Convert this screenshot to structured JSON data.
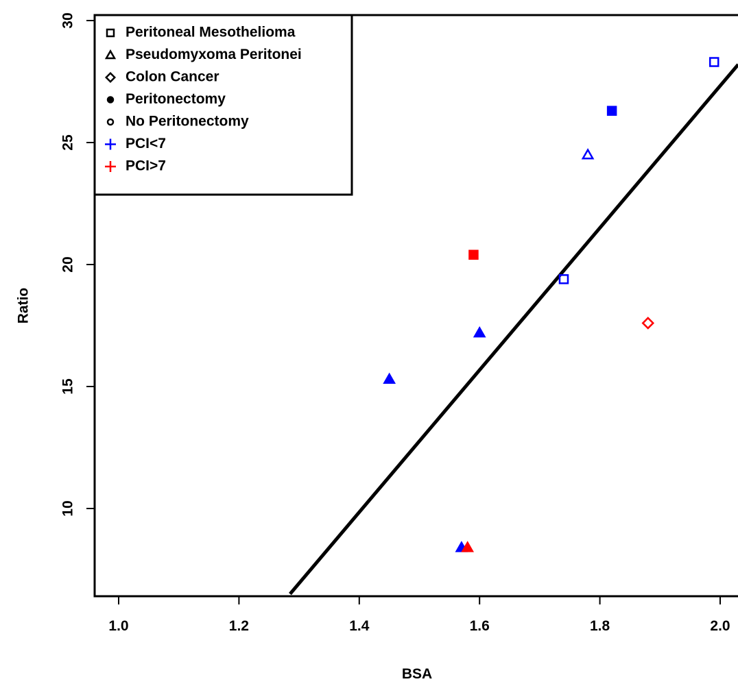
{
  "chart_data": {
    "type": "scatter",
    "title": "",
    "xlabel": "BSA",
    "ylabel": "Ratio",
    "xlim": [
      0.955,
      2.03
    ],
    "ylim": [
      6.5,
      30.0
    ],
    "xticks": [
      1.0,
      1.2,
      1.4,
      1.6,
      1.8,
      2.0
    ],
    "xtick_labels": [
      "1.0",
      "1.2",
      "1.4",
      "1.6",
      "1.8",
      "2.0"
    ],
    "yticks": [
      10,
      15,
      20,
      25,
      30
    ],
    "ytick_labels": [
      "10",
      "15",
      "20",
      "25",
      "30"
    ],
    "grid": false,
    "legend_position": "top-left",
    "legend": [
      {
        "label": "Peritoneal Mesothelioma",
        "symbol": "square-open",
        "color": "#000000"
      },
      {
        "label": "Pseudomyxoma Peritonei",
        "symbol": "triangle-open",
        "color": "#000000"
      },
      {
        "label": "Colon Cancer",
        "symbol": "diamond-open",
        "color": "#000000"
      },
      {
        "label": "Peritonectomy",
        "symbol": "circle-filled",
        "color": "#000000"
      },
      {
        "label": "No Peritonectomy",
        "symbol": "circle-open",
        "color": "#000000"
      },
      {
        "label": "PCI<7",
        "symbol": "plus",
        "color": "#0000ff"
      },
      {
        "label": "PCI>7",
        "symbol": "plus",
        "color": "#ff0000"
      }
    ],
    "points": [
      {
        "x": 1.99,
        "y": 28.3,
        "shape": "square",
        "filled": false,
        "color": "#0000ff"
      },
      {
        "x": 1.82,
        "y": 26.3,
        "shape": "square",
        "filled": true,
        "color": "#0000ff"
      },
      {
        "x": 1.78,
        "y": 24.5,
        "shape": "triangle",
        "filled": false,
        "color": "#0000ff"
      },
      {
        "x": 1.59,
        "y": 20.4,
        "shape": "square",
        "filled": true,
        "color": "#ff0000"
      },
      {
        "x": 1.74,
        "y": 19.4,
        "shape": "square",
        "filled": false,
        "color": "#0000ff"
      },
      {
        "x": 1.88,
        "y": 17.6,
        "shape": "diamond",
        "filled": false,
        "color": "#ff0000"
      },
      {
        "x": 1.6,
        "y": 17.2,
        "shape": "triangle",
        "filled": true,
        "color": "#0000ff"
      },
      {
        "x": 1.45,
        "y": 15.3,
        "shape": "triangle",
        "filled": true,
        "color": "#0000ff"
      },
      {
        "x": 1.57,
        "y": 8.4,
        "shape": "triangle",
        "filled": true,
        "color": "#0000ff"
      },
      {
        "x": 1.58,
        "y": 8.4,
        "shape": "triangle",
        "filled": true,
        "color": "#ff0000"
      }
    ],
    "regression_line": {
      "x": [
        1.285,
        2.03
      ],
      "y": [
        6.5,
        28.2
      ],
      "color": "#000000"
    }
  }
}
